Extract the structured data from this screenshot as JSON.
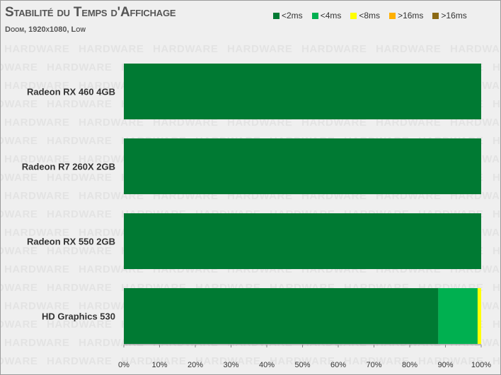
{
  "title": "Stabilité du Temps d'Affichage",
  "subtitle": "Doom, 1920x1080, Low",
  "watermark": "HARDWARE",
  "legend": [
    {
      "label": "<2ms",
      "color": "#007a33"
    },
    {
      "label": "<4ms",
      "color": "#00b050"
    },
    {
      "label": "<8ms",
      "color": "#ffff00"
    },
    {
      "label": ">16ms",
      "color": "#ffb000"
    },
    {
      "label": ">16ms",
      "color": "#8b6914"
    }
  ],
  "chart_data": {
    "type": "bar",
    "orientation": "horizontal",
    "stacked": true,
    "categories": [
      "Radeon RX 460 4GB",
      "Radeon R7 260X 2GB",
      "Radeon RX 550 2GB",
      "HD Graphics 530"
    ],
    "series": [
      {
        "name": "<2ms",
        "color": "#007a33",
        "values": [
          100,
          100,
          100,
          88
        ]
      },
      {
        "name": "<4ms",
        "color": "#00b050",
        "values": [
          0,
          0,
          0,
          11
        ]
      },
      {
        "name": "<8ms",
        "color": "#ffff00",
        "values": [
          0,
          0,
          0,
          1
        ]
      },
      {
        "name": ">16ms",
        "color": "#ffb000",
        "values": [
          0,
          0,
          0,
          0
        ]
      },
      {
        "name": ">16ms",
        "color": "#8b6914",
        "values": [
          0,
          0,
          0,
          0
        ]
      }
    ],
    "xlim": [
      0,
      100
    ],
    "x_ticks": [
      "0%",
      "10%",
      "20%",
      "30%",
      "40%",
      "50%",
      "60%",
      "70%",
      "80%",
      "90%",
      "100%"
    ],
    "grid": false
  }
}
